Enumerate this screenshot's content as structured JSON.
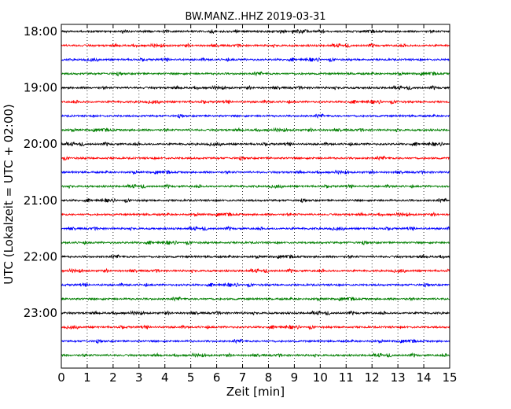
{
  "chart_data": {
    "type": "line",
    "title": "BW.MANZ..HHZ 2019-03-31",
    "xlabel": "Zeit  [min]",
    "ylabel": "UTC (Lokalzeit = UTC + 02:00)",
    "xlim": [
      0,
      15
    ],
    "x_ticks": [
      0,
      1,
      2,
      3,
      4,
      5,
      6,
      7,
      8,
      9,
      10,
      11,
      12,
      13,
      14,
      15
    ],
    "x_tick_labels": [
      "0",
      "1",
      "2",
      "3",
      "4",
      "5",
      "6",
      "7",
      "8",
      "9",
      "10",
      "11",
      "12",
      "13",
      "14",
      "15"
    ],
    "y_tick_labels": [
      "18:00",
      "19:00",
      "20:00",
      "21:00",
      "22:00",
      "23:00"
    ],
    "grid": "vertical dotted",
    "trace_interval_min": 15,
    "trace_start_times": [
      "18:00",
      "18:15",
      "18:30",
      "18:45",
      "19:00",
      "19:15",
      "19:30",
      "19:45",
      "20:00",
      "20:15",
      "20:30",
      "20:45",
      "21:00",
      "21:15",
      "21:30",
      "21:45",
      "22:00",
      "22:15",
      "22:30",
      "22:45",
      "23:00",
      "23:15",
      "23:30",
      "23:45"
    ],
    "colors": [
      "#000000",
      "#ff0000",
      "#0000ff",
      "#007f00"
    ]
  }
}
